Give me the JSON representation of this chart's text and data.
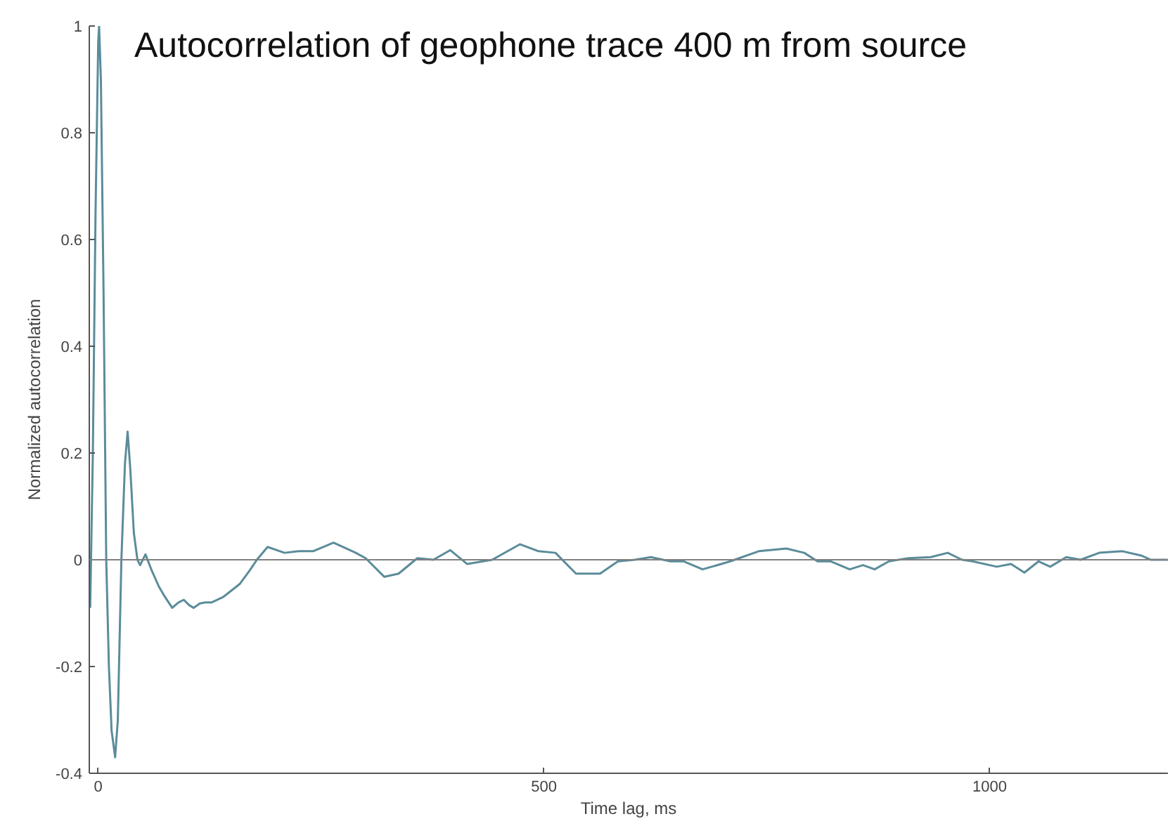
{
  "chart_data": {
    "type": "line",
    "title": "Autocorrelation of geophone trace 400 m from source",
    "xlabel": "Time lag, ms",
    "ylabel": "Normalized autocorrelation",
    "xlim": [
      -10,
      1200
    ],
    "ylim": [
      -0.4,
      1
    ],
    "xticks": [
      0,
      500,
      1000
    ],
    "yticks": [
      -0.4,
      -0.2,
      0,
      0.2,
      0.4,
      0.6,
      0.8,
      1
    ],
    "grid": false,
    "marker": "none",
    "line_style": "solid",
    "ref_lines": [
      {
        "axis": "y",
        "value": 0,
        "color": "#808080"
      }
    ],
    "series": [
      {
        "color": "#5b8c9a",
        "x": [
          -9,
          -6,
          -3,
          0,
          1,
          3,
          6,
          9,
          12,
          15,
          19,
          22,
          26,
          30,
          33,
          36,
          40,
          44,
          47,
          53,
          60,
          68,
          75,
          83,
          90,
          96,
          102,
          107,
          114,
          120,
          127,
          140,
          159,
          170,
          178,
          190,
          209,
          225,
          241,
          264,
          289,
          300,
          321,
          337,
          358,
          376,
          395,
          414,
          442,
          473,
          494,
          513,
          536,
          563,
          583,
          602,
          620,
          642,
          657,
          678,
          709,
          741,
          772,
          792,
          807,
          822,
          843,
          858,
          871,
          887,
          909,
          934,
          953,
          969,
          981,
          1008,
          1024,
          1039,
          1055,
          1068,
          1086,
          1102,
          1123,
          1149,
          1170,
          1181,
          1200
        ],
        "values": [
          -0.09,
          0.2,
          0.65,
          0.97,
          1.0,
          0.9,
          0.5,
          0.0,
          -0.2,
          -0.32,
          -0.37,
          -0.3,
          0.0,
          0.18,
          0.24,
          0.17,
          0.05,
          0.0,
          -0.01,
          0.01,
          -0.02,
          -0.05,
          -0.07,
          -0.09,
          -0.08,
          -0.075,
          -0.085,
          -0.09,
          -0.082,
          -0.08,
          -0.08,
          -0.07,
          -0.045,
          -0.02,
          0.0,
          0.024,
          0.013,
          0.016,
          0.016,
          0.032,
          0.013,
          0.003,
          -0.032,
          -0.026,
          0.003,
          0.0,
          0.018,
          -0.008,
          0.0,
          0.029,
          0.016,
          0.013,
          -0.026,
          -0.026,
          -0.003,
          0.0,
          0.005,
          -0.003,
          -0.003,
          -0.018,
          -0.003,
          0.016,
          0.021,
          0.013,
          -0.003,
          -0.003,
          -0.018,
          -0.01,
          -0.018,
          -0.003,
          0.003,
          0.005,
          0.013,
          0.0,
          -0.003,
          -0.013,
          -0.008,
          -0.024,
          -0.003,
          -0.013,
          0.005,
          0.0,
          0.013,
          0.016,
          0.008,
          0.0,
          0.0
        ]
      }
    ]
  }
}
